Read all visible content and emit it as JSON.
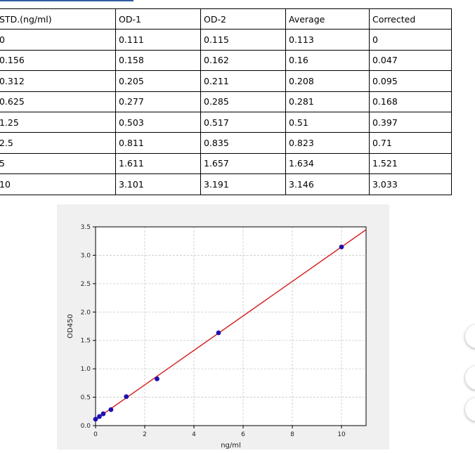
{
  "table": {
    "headers": [
      "STD.(ng/ml)",
      "OD-1",
      "OD-2",
      "Average",
      "Corrected"
    ],
    "rows": [
      [
        "0",
        "0.111",
        "0.115",
        "0.113",
        "0"
      ],
      [
        "0.156",
        "0.158",
        "0.162",
        "0.16",
        "0.047"
      ],
      [
        "0.312",
        "0.205",
        "0.211",
        "0.208",
        "0.095"
      ],
      [
        "0.625",
        "0.277",
        "0.285",
        "0.281",
        "0.168"
      ],
      [
        "1.25",
        "0.503",
        "0.517",
        "0.51",
        "0.397"
      ],
      [
        "2.5",
        "0.811",
        "0.835",
        "0.823",
        "0.71"
      ],
      [
        "5",
        "1.611",
        "1.657",
        "1.634",
        "1.521"
      ],
      [
        "10",
        "3.101",
        "3.191",
        "3.146",
        "3.033"
      ]
    ]
  },
  "chart_data": {
    "type": "scatter",
    "title": "",
    "xlabel": "ng/ml",
    "ylabel": "OD450",
    "xlim": [
      0,
      11
    ],
    "ylim": [
      0,
      3.5
    ],
    "x_ticks": [
      0,
      2,
      4,
      6,
      8,
      10
    ],
    "y_ticks": [
      0.0,
      0.5,
      1.0,
      1.5,
      2.0,
      2.5,
      3.0,
      3.5
    ],
    "x_tick_labels": [
      "0",
      "2",
      "4",
      "6",
      "8",
      "10"
    ],
    "y_tick_labels": [
      "0.0",
      "0.5",
      "1.0",
      "1.5",
      "2.0",
      "2.5",
      "3.0",
      "3.5"
    ],
    "grid": true,
    "series": [
      {
        "kind": "points",
        "color": "#1f10b0",
        "x": [
          0,
          0.156,
          0.312,
          0.625,
          1.25,
          2.5,
          5,
          10
        ],
        "y": [
          0.113,
          0.16,
          0.208,
          0.281,
          0.51,
          0.823,
          1.634,
          3.146
        ]
      },
      {
        "kind": "fit-line",
        "color": "#d62728",
        "x": [
          0,
          11
        ],
        "y": [
          0.11,
          3.45
        ]
      }
    ]
  },
  "side_buttons": [
    {
      "symbol": "+"
    },
    {
      "symbol": "−"
    },
    {
      "symbol": "−"
    }
  ]
}
